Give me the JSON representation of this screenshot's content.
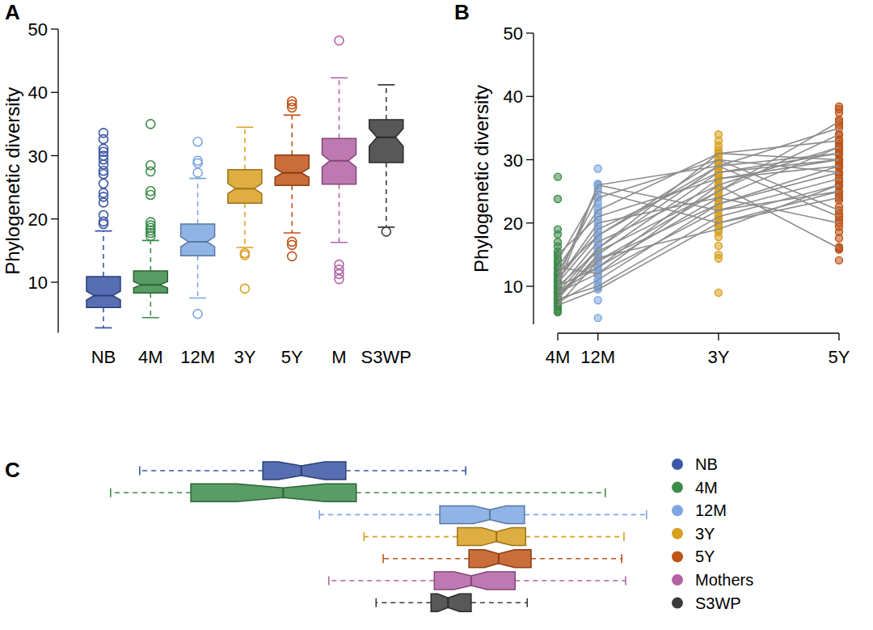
{
  "chart_data": [
    {
      "type": "box",
      "title": "A",
      "y_label": "Phylogenetic diversity",
      "categories": [
        "NB",
        "4M",
        "12M",
        "3Y",
        "5Y",
        "M",
        "S3WP"
      ],
      "colors": [
        "#3a56a5",
        "#3d8b4a",
        "#7da7e0",
        "#d8a021",
        "#bf5318",
        "#b462a5",
        "#3b3b3b"
      ],
      "ylim": [
        2,
        50
      ],
      "yticks": [
        10,
        20,
        30,
        40,
        50
      ],
      "grid": false,
      "boxes": [
        {
          "low": 2.8,
          "q1": 6.0,
          "median": 7.9,
          "q3": 10.9,
          "high": 18.1,
          "notch": [
            7.2,
            8.6
          ],
          "outliers": [
            33.6,
            32.6,
            31.1,
            30.6,
            30.0,
            29.4,
            28.6,
            27.6,
            27.1,
            25.6,
            24.1,
            23.5,
            22.6,
            20.6,
            19.6,
            19.2
          ]
        },
        {
          "low": 4.4,
          "q1": 8.3,
          "median": 9.6,
          "q3": 11.8,
          "high": 16.6,
          "notch": [
            9.1,
            10.1
          ],
          "outliers": [
            35.0,
            28.5,
            27.5,
            24.4,
            23.8,
            19.5,
            19.0,
            18.6,
            18.2,
            17.8,
            17.3
          ]
        },
        {
          "low": 7.5,
          "q1": 14.2,
          "median": 16.4,
          "q3": 19.2,
          "high": 26.4,
          "notch": [
            15.6,
            17.2
          ],
          "outliers": [
            32.2,
            29.2,
            28.8,
            27.3,
            5.0
          ]
        },
        {
          "low": 15.5,
          "q1": 22.5,
          "median": 24.8,
          "q3": 27.8,
          "high": 34.5,
          "notch": [
            24.0,
            25.6
          ],
          "outliers": [
            14.6,
            14.3,
            9.0
          ]
        },
        {
          "low": 17.8,
          "q1": 25.3,
          "median": 27.3,
          "q3": 30.1,
          "high": 36.4,
          "notch": [
            26.6,
            28.0
          ],
          "outliers": [
            38.6,
            38.1,
            37.6,
            16.4,
            15.9,
            14.1
          ]
        },
        {
          "low": 16.3,
          "q1": 25.5,
          "median": 29.2,
          "q3": 32.7,
          "high": 42.3,
          "notch": [
            28.2,
            30.2
          ],
          "outliers": [
            48.2,
            12.8,
            12.0,
            11.3,
            10.5
          ]
        },
        {
          "low": 18.7,
          "q1": 28.9,
          "median": 32.9,
          "q3": 35.7,
          "high": 41.2,
          "notch": [
            31.5,
            34.3
          ],
          "outliers": [
            18.0
          ]
        }
      ]
    },
    {
      "type": "scatter",
      "title": "B",
      "y_label": "Phylogenetic diversity",
      "x": [
        4,
        12,
        36,
        60
      ],
      "xlim": [
        4,
        60
      ],
      "xticks": [
        {
          "value": 4,
          "label": "4M"
        },
        {
          "value": 12,
          "label": "12M"
        },
        {
          "value": 36,
          "label": "3Y"
        },
        {
          "value": 60,
          "label": "5Y"
        }
      ],
      "ylim": [
        4,
        50
      ],
      "yticks": [
        10,
        20,
        30,
        40,
        50
      ],
      "grid": false,
      "colors": [
        "#3d8b4a",
        "#7da7e0",
        "#d8a021",
        "#bf5318"
      ],
      "points": [
        [
          27.3,
          23.8,
          19.0,
          18.2,
          17.0,
          16.3,
          15.5,
          14.8,
          14.2,
          13.6,
          12.8,
          12.2,
          11.6,
          10.7,
          9.7,
          8.7,
          7.8,
          6.8,
          6.3,
          5.9,
          6.1,
          7.3
        ],
        [
          28.6,
          26.2,
          25.5,
          24.0,
          23.2,
          22.5,
          21.5,
          20.5,
          19.5,
          18.6,
          17.5,
          16.8,
          15.2,
          13.8,
          12.5,
          11.8,
          11.0,
          10.2,
          9.8,
          7.8,
          5.0
        ],
        [
          34.0,
          33.0,
          32.2,
          31.5,
          30.6,
          29.5,
          28.6,
          27.5,
          26.8,
          25.6,
          24.4,
          23.6,
          22.4,
          21.2,
          20.6,
          19.6,
          18.6,
          17.8,
          16.4,
          15.0,
          14.4,
          9.0
        ],
        [
          38.4,
          38.0,
          37.4,
          36.3,
          35.5,
          34.0,
          33.2,
          32.5,
          31.6,
          30.8,
          29.6,
          28.8,
          27.6,
          26.6,
          25.8,
          24.4,
          23.6,
          22.6,
          21.4,
          20.5,
          19.4,
          18.6,
          17.6,
          16.2,
          15.8,
          14.1
        ]
      ],
      "series": [
        {
          "type": "line",
          "color": "#8c8c8c",
          "marker": "circle",
          "values": [
            8,
            15,
            28,
            30
          ]
        },
        {
          "type": "line",
          "color": "#8c8c8c",
          "marker": "circle",
          "values": [
            10,
            26,
            29,
            31
          ]
        },
        {
          "type": "line",
          "color": "#8c8c8c",
          "marker": "circle",
          "values": [
            9,
            12,
            22,
            25
          ]
        },
        {
          "type": "line",
          "color": "#8c8c8c",
          "marker": "circle",
          "values": [
            7,
            14,
            25,
            36
          ]
        },
        {
          "type": "line",
          "color": "#8c8c8c",
          "marker": "circle",
          "values": [
            12,
            18,
            30,
            28
          ]
        },
        {
          "type": "line",
          "color": "#8c8c8c",
          "marker": "circle",
          "values": [
            11,
            20,
            24,
            32
          ]
        },
        {
          "type": "line",
          "color": "#8c8c8c",
          "marker": "circle",
          "values": [
            8,
            10,
            21,
            26
          ]
        },
        {
          "type": "line",
          "color": "#8c8c8c",
          "marker": "circle",
          "values": [
            13,
            22,
            31,
            33
          ]
        },
        {
          "type": "line",
          "color": "#8c8c8c",
          "marker": "circle",
          "values": [
            9,
            16,
            29,
            21
          ]
        },
        {
          "type": "line",
          "color": "#8c8c8c",
          "marker": "circle",
          "values": [
            10,
            13,
            27,
            30
          ]
        },
        {
          "type": "line",
          "color": "#8c8c8c",
          "marker": "circle",
          "values": [
            14,
            25,
            20,
            24
          ]
        },
        {
          "type": "line",
          "color": "#8c8c8c",
          "marker": "circle",
          "values": [
            7.5,
            11,
            23,
            29
          ]
        },
        {
          "type": "line",
          "color": "#8c8c8c",
          "marker": "circle",
          "values": [
            9.5,
            17,
            26,
            16
          ]
        },
        {
          "type": "line",
          "color": "#8c8c8c",
          "marker": "circle",
          "values": [
            11,
            19,
            28,
            31
          ]
        },
        {
          "type": "line",
          "color": "#8c8c8c",
          "marker": "circle",
          "values": [
            8.5,
            14.5,
            19,
            26
          ]
        },
        {
          "type": "line",
          "color": "#8c8c8c",
          "marker": "circle",
          "values": [
            12,
            24,
            30,
            22
          ]
        },
        {
          "type": "line",
          "color": "#8c8c8c",
          "marker": "circle",
          "values": [
            10,
            15.5,
            25,
            34
          ]
        },
        {
          "type": "line",
          "color": "#8c8c8c",
          "marker": "circle",
          "values": [
            15,
            21,
            27,
            29
          ]
        },
        {
          "type": "line",
          "color": "#8c8c8c",
          "marker": "circle",
          "values": [
            9,
            13,
            24,
            20
          ]
        },
        {
          "type": "line",
          "color": "#8c8c8c",
          "marker": "circle",
          "values": [
            8,
            16,
            31,
            30
          ]
        },
        {
          "type": "line",
          "color": "#8c8c8c",
          "marker": "circle",
          "values": [
            11,
            26,
            22,
            27
          ]
        },
        {
          "type": "line",
          "color": "#8c8c8c",
          "marker": "circle",
          "values": [
            13,
            12,
            26,
            32
          ]
        },
        {
          "type": "line",
          "color": "#8c8c8c",
          "marker": "circle",
          "values": [
            7,
            9.5,
            20,
            25
          ]
        },
        {
          "type": "line",
          "color": "#8c8c8c",
          "marker": "circle",
          "values": [
            10.5,
            18,
            29,
            35
          ]
        },
        {
          "type": "line",
          "color": "#8c8c8c",
          "marker": "circle",
          "values": [
            9,
            14,
            23,
            28
          ]
        }
      ]
    },
    {
      "type": "box",
      "title": "C",
      "orientation": "horizontal",
      "tick_labels": false,
      "legend": "right",
      "categories": [
        "NB",
        "4M",
        "12M",
        "3Y",
        "5Y",
        "Mothers",
        "S3WP"
      ],
      "colors": [
        "#3a56a5",
        "#3d8b4a",
        "#7da7e0",
        "#d8a021",
        "#bf5318",
        "#b462a5",
        "#3b3b3b"
      ],
      "xlim": [
        0,
        100
      ],
      "boxes": [
        {
          "low": 6.3,
          "q1": 28.7,
          "median": 35.7,
          "q3": 43.8,
          "high": 65.6,
          "notch": [
            31.5,
            40.0
          ]
        },
        {
          "low": 1.0,
          "q1": 15.6,
          "median": 32.4,
          "q3": 45.7,
          "high": 91.0,
          "notch": [
            24.0,
            40.0
          ]
        },
        {
          "low": 39.0,
          "q1": 60.9,
          "median": 70.0,
          "q3": 76.3,
          "high": 98.5,
          "notch": [
            67.0,
            73.0
          ]
        },
        {
          "low": 47.1,
          "q1": 64.1,
          "median": 71.2,
          "q3": 76.5,
          "high": 94.4,
          "notch": [
            68.5,
            74.0
          ]
        },
        {
          "low": 50.6,
          "q1": 66.2,
          "median": 71.6,
          "q3": 77.5,
          "high": 94.0,
          "notch": [
            69.0,
            74.5
          ]
        },
        {
          "low": 40.7,
          "q1": 59.9,
          "median": 66.6,
          "q3": 74.6,
          "high": 94.7,
          "notch": [
            63.5,
            69.5
          ]
        },
        {
          "low": 49.3,
          "q1": 59.3,
          "median": 62.4,
          "q3": 66.6,
          "high": 76.8,
          "notch": [
            60.5,
            64.5
          ]
        }
      ]
    }
  ]
}
